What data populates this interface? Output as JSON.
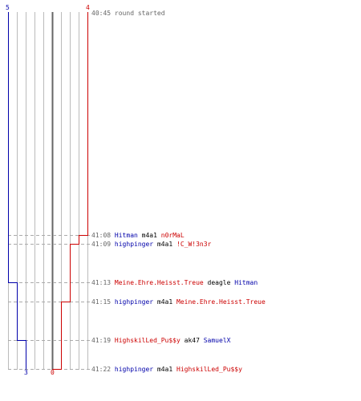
{
  "colors": {
    "team_blue": "#0000aa",
    "team_red": "#cc0000",
    "grid": "#bbbbbb",
    "center": "#666666",
    "text": "#000000",
    "time": "#666666"
  },
  "scores": {
    "blue_start": "5",
    "red_start": "4",
    "blue_end": "3",
    "red_end": "0"
  },
  "events": [
    {
      "time": "40:45",
      "text": "round started"
    },
    {
      "time": "41:08",
      "attacker": "Hitman",
      "attacker_team": "blue",
      "weapon": "m4a1",
      "victim": "n0rMaL",
      "victim_team": "red"
    },
    {
      "time": "41:09",
      "attacker": "highpinger",
      "attacker_team": "blue",
      "weapon": "m4a1",
      "victim": "!C_W!3n3r",
      "victim_team": "red"
    },
    {
      "time": "41:13",
      "attacker": "Meine.Ehre.Heisst.Treue",
      "attacker_team": "red",
      "weapon": "deagle",
      "victim": "Hitman",
      "victim_team": "blue"
    },
    {
      "time": "41:15",
      "attacker": "highpinger",
      "attacker_team": "blue",
      "weapon": "m4a1",
      "victim": "Meine.Ehre.Heisst.Treue",
      "victim_team": "red"
    },
    {
      "time": "41:19",
      "attacker": "HighskilLed_Pu$$y",
      "attacker_team": "red",
      "weapon": "ak47",
      "victim": "SamuelX",
      "victim_team": "blue"
    },
    {
      "time": "41:22",
      "attacker": "highpinger",
      "attacker_team": "blue",
      "weapon": "m4a1",
      "victim": "HighskilLed_Pu$$y",
      "victim_team": "red"
    }
  ]
}
